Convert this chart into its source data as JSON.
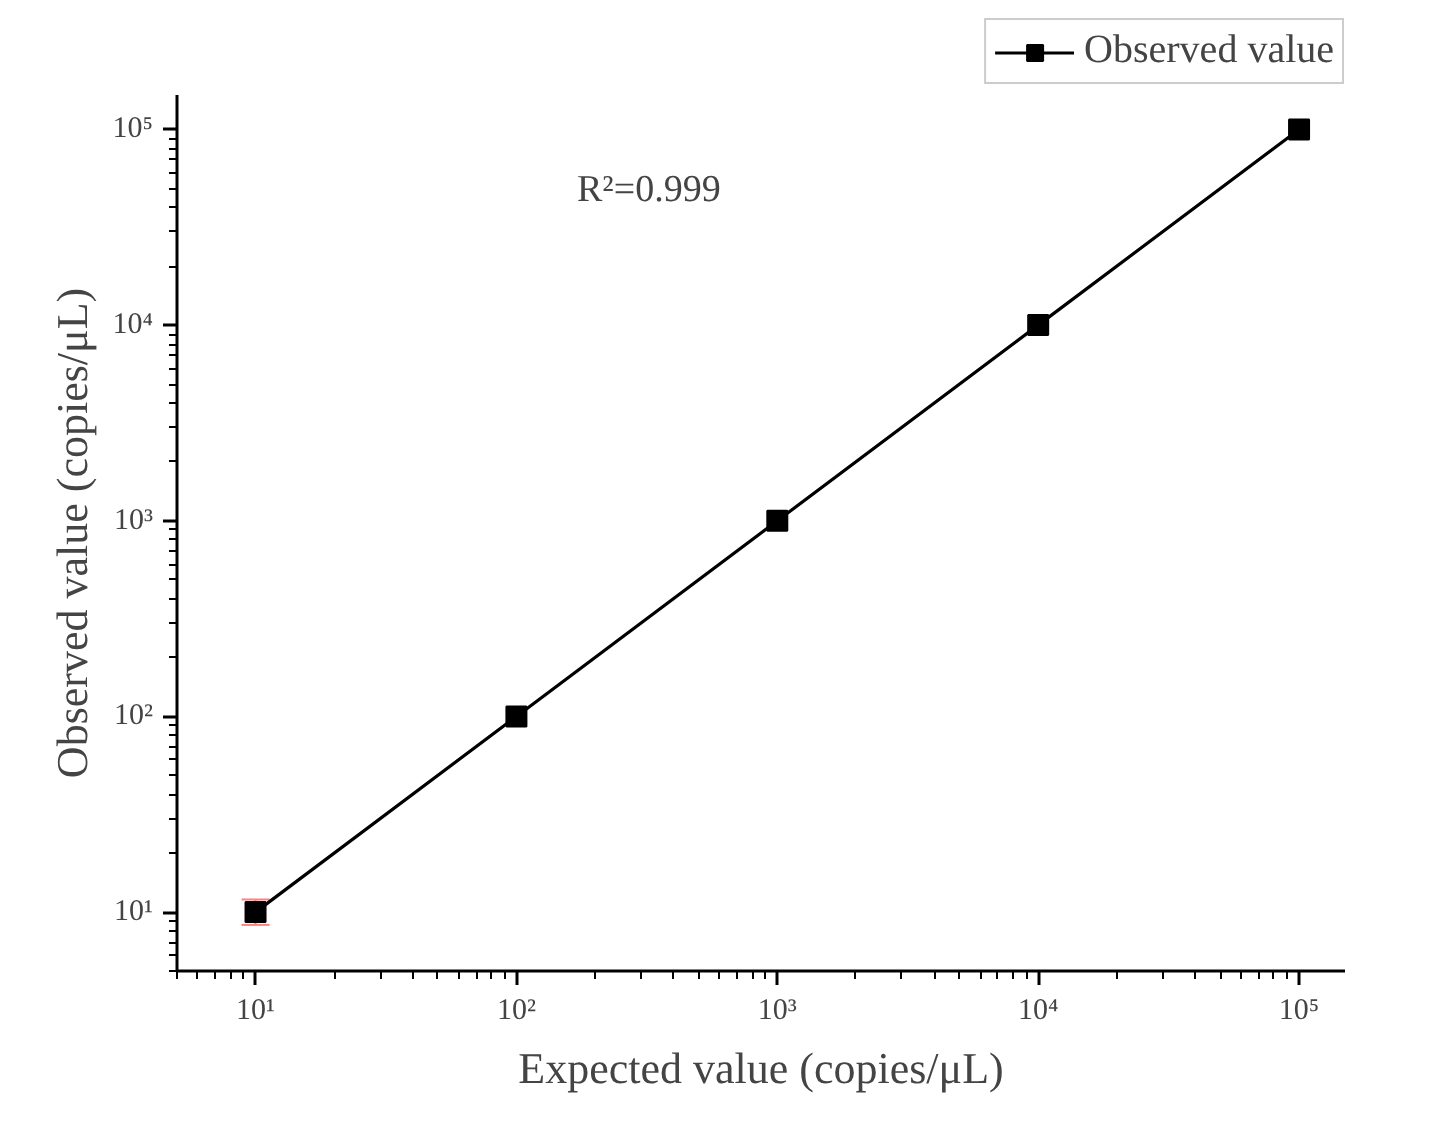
{
  "chart_data": {
    "type": "line",
    "xlabel": "Expected value (copies/μL)",
    "ylabel": "Observed value (copies/μL)",
    "x": [
      10,
      100,
      1000,
      10000,
      100000
    ],
    "series": [
      {
        "name": "Observed value",
        "color": "#000000",
        "values": [
          10,
          100,
          1000,
          10000,
          100000
        ],
        "errors": [
          [
            8.6,
            11.6
          ],
          null,
          null,
          null,
          null
        ]
      }
    ],
    "log": "xy",
    "xlim": [
      5,
      150000
    ],
    "ylim": [
      5,
      150000
    ],
    "xticks": [
      {
        "value": 10,
        "label": "10¹"
      },
      {
        "value": 100,
        "label": "10²"
      },
      {
        "value": 1000,
        "label": "10³"
      },
      {
        "value": 10000,
        "label": "10⁴"
      },
      {
        "value": 100000,
        "label": "10⁵"
      }
    ],
    "yticks": [
      {
        "value": 10,
        "label": "10¹"
      },
      {
        "value": 100,
        "label": "10²"
      },
      {
        "value": 1000,
        "label": "10³"
      },
      {
        "value": 10000,
        "label": "10⁴"
      },
      {
        "value": 100000,
        "label": "10⁵"
      }
    ],
    "marker": "square",
    "line_style": "solid",
    "grid": false,
    "legend": "top right",
    "annotations": [
      "R²=0.999"
    ]
  }
}
